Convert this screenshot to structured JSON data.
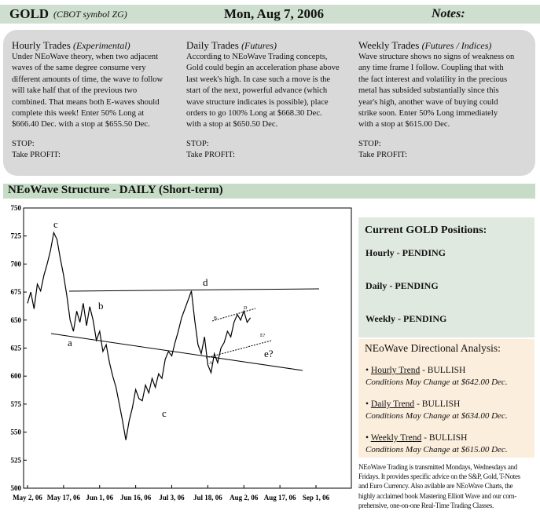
{
  "header": {
    "symbol": "GOLD",
    "symbol_note": "(CBOT symbol ZG)",
    "date": "Mon, Aug 7, 2006",
    "notes": "Notes:"
  },
  "trades": [
    {
      "title": "Hourly Trades",
      "qualifier": "(Experimental)",
      "lines": [
        "Under NEoWave theory, when two adjacent",
        "waves of the same degree consume very",
        "different amounts of time, the wave to follow",
        "will take half that of the previous two",
        "combined. That means both E-waves should",
        "complete this week! Enter 50% Long at",
        "$666.40 Dec. with a stop at $655.50 Dec."
      ],
      "stop": "STOP:",
      "profit": "Take PROFIT:"
    },
    {
      "title": "Daily Trades",
      "qualifier": "(Futures)",
      "lines": [
        "According to NEoWave Trading concepts,",
        "Gold could begin an acceleration phase above",
        "last week's high. In case such a move is the",
        "start of the next, powerful advance (which",
        "wave structure indicates is possible), place",
        "orders to go 100% Long at $668.30 Dec.",
        "with a stop at $650.50 Dec."
      ],
      "stop": "STOP:",
      "profit": "Take PROFIT:"
    },
    {
      "title": "Weekly Trades",
      "qualifier": "(Futures / Indices)",
      "lines": [
        "Wave structure shows no signs of weakness on",
        "any time frame I follow. Coupling that with",
        "the fact interest and volatility in the precious",
        "metal has subsided substantially since this",
        "year's high, another wave of buying could",
        "strike soon. Enter 50% Long immediately",
        "with a stop at $615.00 Dec."
      ],
      "stop": "STOP:",
      "profit": "Take PROFIT:"
    }
  ],
  "structure_title": "NEoWave Structure - DAILY (Short-term)",
  "chart": {
    "type": "line",
    "color": "#000000",
    "values": [
      665,
      675,
      660,
      682,
      676,
      690,
      700,
      712,
      728,
      722,
      705,
      690,
      672,
      650,
      640,
      658,
      648,
      665,
      645,
      662,
      650,
      632,
      640,
      622,
      628,
      612,
      600,
      590,
      575,
      560,
      543,
      560,
      572,
      588,
      580,
      578,
      592,
      585,
      598,
      590,
      602,
      598,
      615,
      622,
      618,
      630,
      640,
      652,
      660,
      668,
      676,
      650,
      628,
      620,
      635,
      610,
      603,
      620,
      612,
      625,
      630,
      640,
      635,
      648,
      655,
      650,
      658,
      648,
      652
    ],
    "xlim": [
      0,
      88
    ],
    "xticks": [
      {
        "value": 0,
        "label": "May 2, 06"
      },
      {
        "value": 11,
        "label": "May 17, 06"
      },
      {
        "value": 22,
        "label": "Jun 1, 06"
      },
      {
        "value": 33,
        "label": "Jun 16, 06"
      },
      {
        "value": 44,
        "label": "Jul 3, 06"
      },
      {
        "value": 55,
        "label": "Jul 18, 06"
      },
      {
        "value": 66,
        "label": "Aug 2, 06"
      },
      {
        "value": 77,
        "label": "Aug 17, 06"
      },
      {
        "value": 88,
        "label": "Sep 1, 06"
      }
    ],
    "ylim": [
      500,
      750
    ],
    "yticks": [
      500,
      525,
      550,
      575,
      600,
      625,
      650,
      675,
      700,
      725,
      750
    ],
    "annotations": [
      "c",
      "b",
      "a",
      "d",
      "c",
      "e?",
      "B",
      "D",
      "A",
      "E?"
    ]
  },
  "positions": {
    "title": "Current GOLD Positions:",
    "items": [
      "Hourly - PENDING",
      "Daily - PENDING",
      "Weekly - PENDING"
    ]
  },
  "analysis": {
    "title": "NEoWave Directional Analysis:",
    "items": [
      {
        "bullet": "•",
        "trend": "Hourly Trend",
        "status": "- BULLISH",
        "note": "Conditions May Change at $642.00 Dec."
      },
      {
        "bullet": "•",
        "trend": "Daily Trend",
        "status": "- BULLISH",
        "note": "Conditions May Change at $634.00 Dec."
      },
      {
        "bullet": "•",
        "trend": "Weekly Trend",
        "status": "- BULLISH",
        "note": "Conditions May Change at $615.00 Dec."
      }
    ]
  },
  "footer": [
    "NEoWave Trading is transmitted Mondays, Wednesdays and",
    "Fridays. It provides specific advice on the S&P, Gold, T-Notes",
    "and Euro Currency. Also avilable are NEoWave Charts, the",
    "highly acclaimed book Mastering Elliott Wave and our com-",
    "prehensive, one-on-one Real-Time Trading Classes."
  ]
}
